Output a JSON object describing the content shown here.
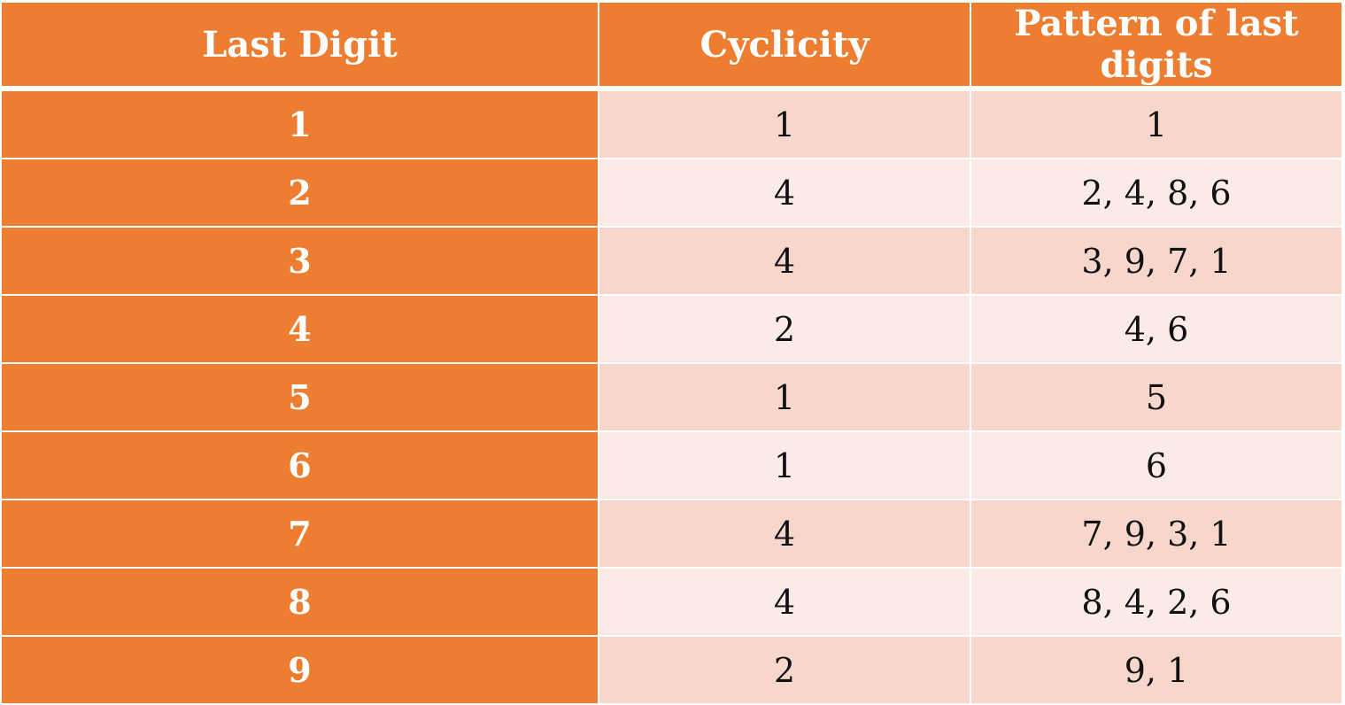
{
  "table": {
    "headers": [
      "Last Digit",
      "Cyclicity",
      "Pattern of last digits"
    ],
    "rows": [
      {
        "last_digit": "1",
        "cyclicity": "1",
        "pattern": "1"
      },
      {
        "last_digit": "2",
        "cyclicity": "4",
        "pattern": "2, 4, 8, 6"
      },
      {
        "last_digit": "3",
        "cyclicity": "4",
        "pattern": "3, 9, 7, 1"
      },
      {
        "last_digit": "4",
        "cyclicity": "2",
        "pattern": "4, 6"
      },
      {
        "last_digit": "5",
        "cyclicity": "1",
        "pattern": "5"
      },
      {
        "last_digit": "6",
        "cyclicity": "1",
        "pattern": "6"
      },
      {
        "last_digit": "7",
        "cyclicity": "4",
        "pattern": "7, 9, 3, 1"
      },
      {
        "last_digit": "8",
        "cyclicity": "4",
        "pattern": "8, 4, 2, 6"
      },
      {
        "last_digit": "9",
        "cyclicity": "2",
        "pattern": "9, 1"
      }
    ]
  },
  "colors": {
    "header_bg": "#ED7D31",
    "first_column_bg": "#ED7D31",
    "row_band_dark": "#F7D6CC",
    "row_band_light": "#FAEBE7",
    "header_text": "#FFFFFF"
  }
}
